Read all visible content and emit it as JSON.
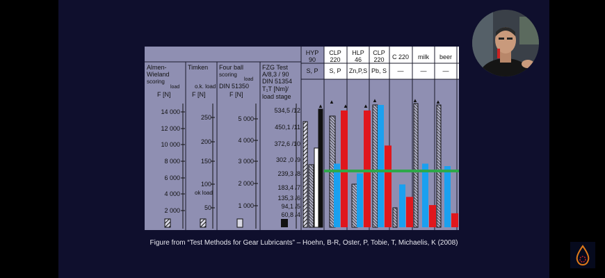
{
  "caption": "Figure from “Test Methods for Gear Lubricants” – Hoehn, B-R, Oster, P, Tobie, T, Michaelis, K (2008)",
  "colors": {
    "background": "#000000",
    "slide": "#0f0f2d",
    "figure_bg": "#8f8fb2",
    "blue": "#1aa0ef",
    "red": "#e0171d",
    "green_line": "#2ea84a"
  },
  "figure": {
    "scale_headers": [
      {
        "lines": [
          "Almen-",
          "Wieland"
        ],
        "sub": "scoring",
        "sub2": "load",
        "unit": "F  [N]"
      },
      {
        "lines": [
          "Timken"
        ],
        "sub": "o.k. load",
        "unit": "F  [N]"
      },
      {
        "lines": [
          "Four ball"
        ],
        "sub": "scoring",
        "sub2": "load",
        "unit": "F  [N]",
        "std": "DIN  51350"
      },
      {
        "lines": [
          "FZG  Test",
          "A/8,3 / 90",
          "DIN  51354"
        ],
        "sub": "T₁T [Nm]/",
        "sub2": "load  stage"
      }
    ],
    "scale1_ticks": [
      "14 000",
      "12 000",
      "10 000",
      "8 000",
      "6 000",
      "4 000",
      "2 000"
    ],
    "scale2_ticks": [
      "250",
      "200",
      "150",
      "100",
      "50"
    ],
    "scale2_label": "ok load",
    "scale3_ticks": [
      "5 000",
      "4 000",
      "3 000",
      "2 000",
      "1 000"
    ],
    "scale4_ticks": [
      "534,5 /12",
      "450,1 /11",
      "372,6 /10",
      "302 ,0 /9",
      "239,3 /8",
      "183,4 /7",
      "135,3 /6",
      "94,1 /5",
      "60,8 /4"
    ],
    "oil_columns": [
      {
        "name": "HYP\n90",
        "additives": "S, P"
      },
      {
        "name": "CLP\n220",
        "additives": "S, P"
      },
      {
        "name": "HLP\n46",
        "additives": "Zn,P,S"
      },
      {
        "name": "CLP\n220",
        "additives": "Pb, S"
      },
      {
        "name": "C 220",
        "additives": "—"
      },
      {
        "name": "milk",
        "additives": "—"
      },
      {
        "name": "beer",
        "additives": "—"
      }
    ],
    "overlay_bars": [
      {
        "column": "CLP 220 (S,P)",
        "blue": 0.52,
        "red": 1.0
      },
      {
        "column": "HLP 46",
        "blue": 0.44,
        "red": 1.0
      },
      {
        "column": "CLP 220 (Pb,S)",
        "blue": 1.0,
        "red": 0.7
      },
      {
        "column": "C 220",
        "blue": 0.35,
        "red": 0.26
      },
      {
        "column": "milk",
        "blue": 0.52,
        "red": 0.19
      },
      {
        "column": "beer",
        "blue": 0.5,
        "red": 0.12
      }
    ]
  }
}
